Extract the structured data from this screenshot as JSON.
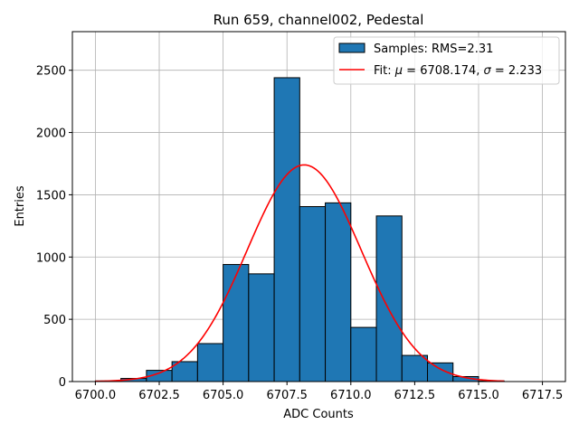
{
  "chart_data": {
    "type": "bar",
    "title": "Run 659, channel002, Pedestal",
    "xlabel": "ADC Counts",
    "ylabel": "Entries",
    "xlim": [
      6699.1,
      6718.4
    ],
    "ylim": [
      0,
      2810
    ],
    "xticks": [
      6700.0,
      6702.5,
      6705.0,
      6707.5,
      6710.0,
      6712.5,
      6715.0,
      6717.5
    ],
    "xtick_labels": [
      "6700.0",
      "6702.5",
      "6705.0",
      "6707.5",
      "6710.0",
      "6712.5",
      "6715.0",
      "6717.5"
    ],
    "yticks": [
      0,
      500,
      1000,
      1500,
      2000,
      2500
    ],
    "ytick_labels": [
      "0",
      "500",
      "1000",
      "1500",
      "2000",
      "2500"
    ],
    "grid": true,
    "legend_position": "top-right",
    "histogram": {
      "name": "Samples: RMS=2.31",
      "color": "#1f77b4",
      "bin_edges": [
        6700,
        6701,
        6702,
        6703,
        6704,
        6705,
        6706,
        6707,
        6708,
        6709,
        6710,
        6711,
        6712,
        6713,
        6714,
        6715,
        6716
      ],
      "counts": [
        5,
        25,
        90,
        160,
        305,
        940,
        865,
        2440,
        1405,
        1435,
        435,
        1330,
        210,
        150,
        40,
        5
      ]
    },
    "fit": {
      "name_prefix": "Fit: ",
      "mu_label": "μ",
      "mu_value": " = 6708.174, ",
      "sigma_label": "σ",
      "sigma_value": " = 2.233",
      "color": "#ff0000",
      "mu": 6708.174,
      "sigma": 2.233,
      "amplitude": 1740,
      "x_range": [
        6700,
        6716
      ]
    }
  }
}
